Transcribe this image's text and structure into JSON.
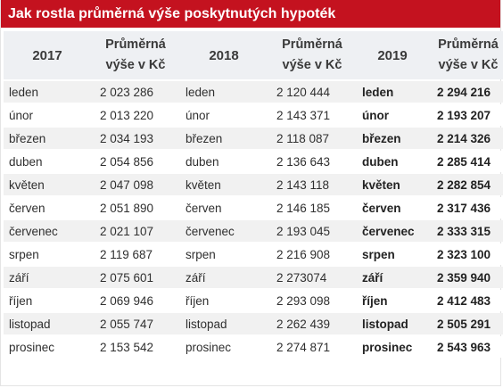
{
  "title": "Jak rostla průměrná výše poskytnutých hypoték",
  "headers": {
    "year_2017": "2017",
    "year_2018": "2018",
    "year_2019": "2019",
    "avg_line1": "Průměrná",
    "avg_line2": "výše v Kč"
  },
  "rows": [
    {
      "month_2017": "leden",
      "value_2017": "2 023 286",
      "month_2018": "leden",
      "value_2018": "2 120 444",
      "month_2019": "leden",
      "value_2019": "2 294 216"
    },
    {
      "month_2017": "únor",
      "value_2017": "2 013 220",
      "month_2018": "únor",
      "value_2018": "2 143 371",
      "month_2019": "únor",
      "value_2019": "2 193 207"
    },
    {
      "month_2017": "březen",
      "value_2017": "2 034 193",
      "month_2018": "březen",
      "value_2018": "2 118 087",
      "month_2019": "březen",
      "value_2019": "2 214 326"
    },
    {
      "month_2017": "duben",
      "value_2017": "2 054 856",
      "month_2018": "duben",
      "value_2018": "2 136 643",
      "month_2019": "duben",
      "value_2019": "2 285 414"
    },
    {
      "month_2017": "květen",
      "value_2017": "2 047 098",
      "month_2018": "květen",
      "value_2018": "2 143 118",
      "month_2019": "květen",
      "value_2019": "2 282 854"
    },
    {
      "month_2017": "červen",
      "value_2017": "2 051 890",
      "month_2018": "červen",
      "value_2018": "2 146 185",
      "month_2019": "červen",
      "value_2019": "2 317 436"
    },
    {
      "month_2017": "červenec",
      "value_2017": "2 021 107",
      "month_2018": "červenec",
      "value_2018": "2 193 045",
      "month_2019": "červenec",
      "value_2019": "2 333 315"
    },
    {
      "month_2017": "srpen",
      "value_2017": "2 119 687",
      "month_2018": "srpen",
      "value_2018": "2 216 908",
      "month_2019": "srpen",
      "value_2019": "2 323 100"
    },
    {
      "month_2017": "září",
      "value_2017": "2 075 601",
      "month_2018": "září",
      "value_2018": "2 273074",
      "month_2019": "září",
      "value_2019": "2 359 940"
    },
    {
      "month_2017": "říjen",
      "value_2017": "2 069 946",
      "month_2018": "říjen",
      "value_2018": "2 293 098",
      "month_2019": "říjen",
      "value_2019": "2 412 483"
    },
    {
      "month_2017": "listopad",
      "value_2017": "2 055 747",
      "month_2018": "listopad",
      "value_2018": "2 262 439",
      "month_2019": "listopad",
      "value_2019": "2 505 291"
    },
    {
      "month_2017": "prosinec",
      "value_2017": "2 153 542",
      "month_2018": "prosinec",
      "value_2018": "2 274 871",
      "month_2019": "prosinec",
      "value_2019": "2 543 963"
    }
  ],
  "colors": {
    "title_bar": "#c4121f",
    "header_bg": "#eef0f3",
    "row_stripe": "#f1f1f1"
  }
}
